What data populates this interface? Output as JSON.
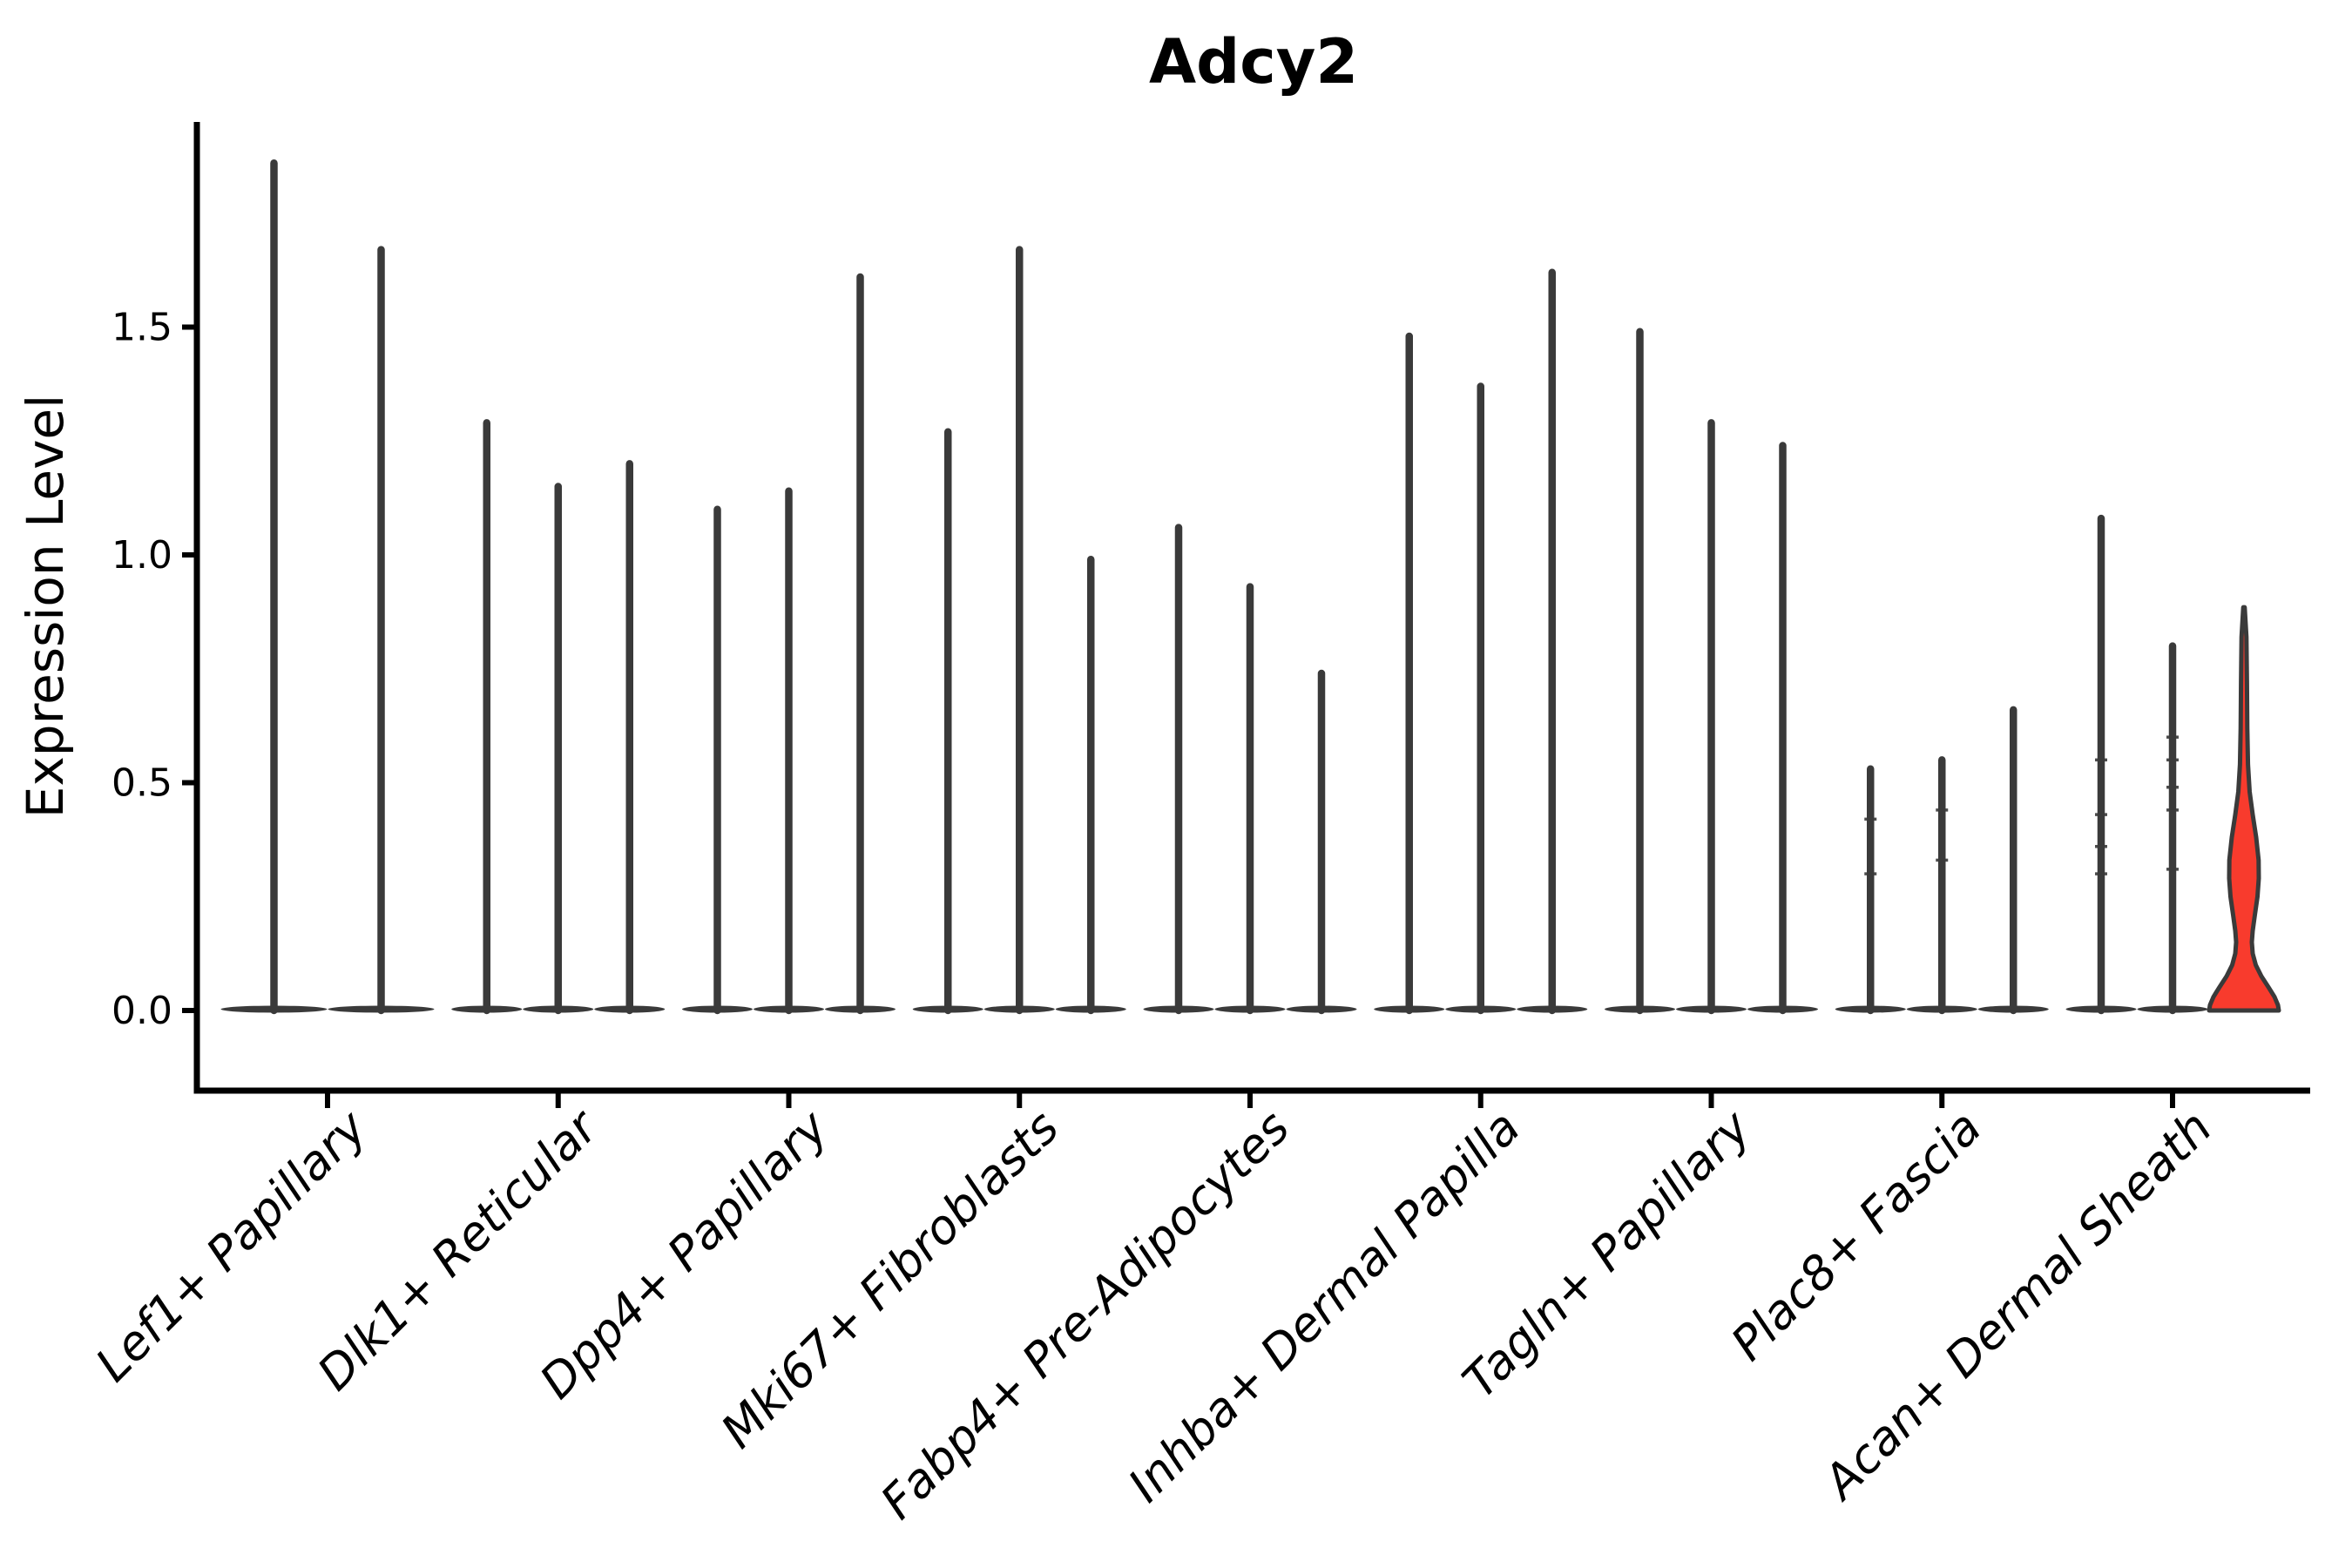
{
  "title": "Adcy2",
  "ylabel": "Expression Level",
  "colors": {
    "ink": "#3a3a3a",
    "red_fill": "#f83b2d",
    "background": "#ffffff",
    "text": "#000000"
  },
  "chart_data": {
    "type": "violin",
    "title": "Adcy2",
    "xlabel": "",
    "ylabel": "Expression Level",
    "yticks": [
      0.0,
      0.5,
      1.0,
      1.5
    ],
    "ytick_labels": [
      "0.0",
      "0.5",
      "1.0",
      "1.5"
    ],
    "ylim": [
      -0.18,
      1.95
    ],
    "grid": false,
    "legend": "none",
    "xtick_rotation_deg": 45,
    "categories": [
      "Lef1+ Papillary",
      "Dlk1+ Reticular",
      "Dpp4+ Papillary",
      "Mki67+ Fibroblasts",
      "Fabp4+ Pre-Adipocytes",
      "Inhba+ Dermal Papilla",
      "Tagln+ Papillary",
      "Plac8+ Fascia",
      "Acan+ Dermal Sheath"
    ],
    "groups": [
      {
        "category": "Lef1+ Papillary",
        "violins": [
          {
            "max": 1.86
          },
          {
            "max": 1.67
          }
        ]
      },
      {
        "category": "Dlk1+ Reticular",
        "violins": [
          {
            "max": 1.29
          },
          {
            "max": 1.15
          },
          {
            "max": 1.2
          }
        ]
      },
      {
        "category": "Dpp4+ Papillary",
        "violins": [
          {
            "max": 1.1
          },
          {
            "max": 1.14
          },
          {
            "max": 1.61
          }
        ]
      },
      {
        "category": "Mki67+ Fibroblasts",
        "violins": [
          {
            "max": 1.27
          },
          {
            "max": 1.67
          },
          {
            "max": 0.99
          }
        ]
      },
      {
        "category": "Fabp4+ Pre-Adipocytes",
        "violins": [
          {
            "max": 1.06
          },
          {
            "max": 0.93
          },
          {
            "max": 0.74
          }
        ]
      },
      {
        "category": "Inhba+ Dermal Papilla",
        "violins": [
          {
            "max": 1.48
          },
          {
            "max": 1.37
          },
          {
            "max": 1.62
          }
        ]
      },
      {
        "category": "Tagln+ Papillary",
        "violins": [
          {
            "max": 1.49
          },
          {
            "max": 1.29
          },
          {
            "max": 1.24
          }
        ]
      },
      {
        "category": "Plac8+ Fascia",
        "violins": [
          {
            "max": 0.53,
            "points": [
              0.42,
              0.3
            ]
          },
          {
            "max": 0.55,
            "points": [
              0.44,
              0.33
            ]
          },
          {
            "max": 0.66
          }
        ]
      },
      {
        "category": "Acan+ Dermal Sheath",
        "violins": [
          {
            "max": 1.08,
            "points": [
              0.55,
              0.43,
              0.36,
              0.3
            ]
          },
          {
            "max": 0.8,
            "points": [
              0.6,
              0.55,
              0.49,
              0.44,
              0.31
            ]
          },
          {
            "max": 0.88,
            "color": "red",
            "profile": [
              [
                0.885,
                0.8
              ],
              [
                0.82,
                2.8
              ],
              [
                0.72,
                3.4
              ],
              [
                0.62,
                3.8
              ],
              [
                0.54,
                4.6
              ],
              [
                0.48,
                6.5
              ],
              [
                0.43,
                10.0
              ],
              [
                0.38,
                14.0
              ],
              [
                0.33,
                16.8
              ],
              [
                0.29,
                17.0
              ],
              [
                0.25,
                15.5
              ],
              [
                0.21,
                12.5
              ],
              [
                0.175,
                10.0
              ],
              [
                0.15,
                9.0
              ],
              [
                0.125,
                10.0
              ],
              [
                0.1,
                13.5
              ],
              [
                0.075,
                20.0
              ],
              [
                0.05,
                28.5
              ],
              [
                0.03,
                35.0
              ],
              [
                0.012,
                39.0
              ],
              [
                0.0,
                40.0
              ]
            ]
          }
        ]
      }
    ]
  }
}
